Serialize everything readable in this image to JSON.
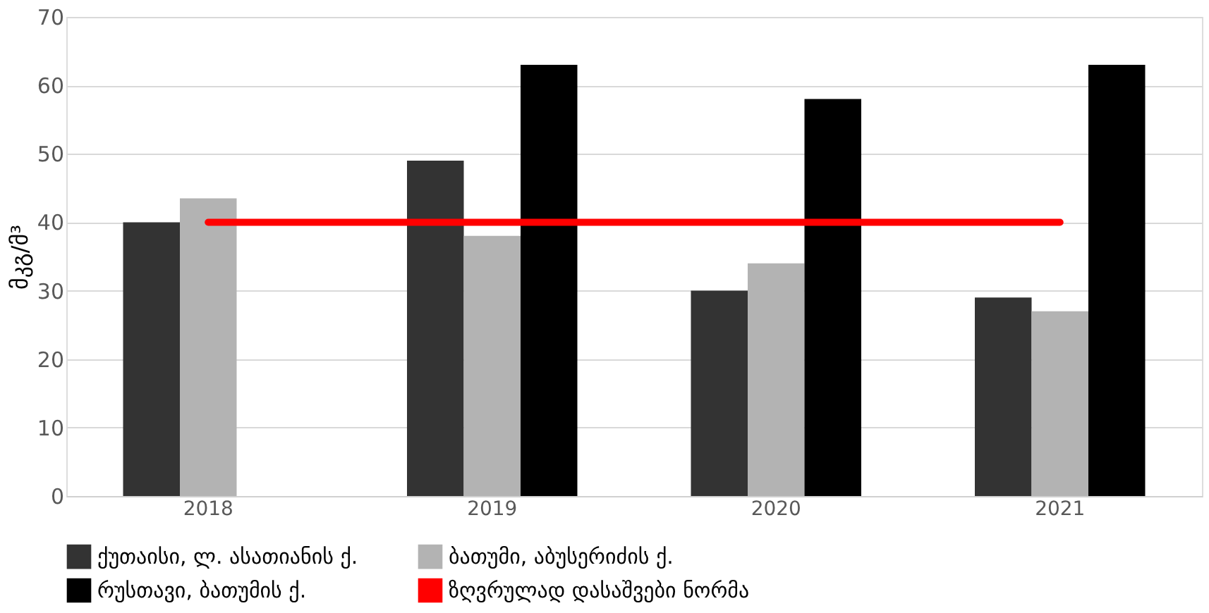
{
  "chart_data": {
    "type": "bar",
    "ylabel": "მკგ/მ³",
    "categories": [
      "2018",
      "2019",
      "2020",
      "2021"
    ],
    "series": [
      {
        "name": "ქუთაისი, ლ. ასათიანის ქ.",
        "color": "#333333",
        "values": [
          40,
          49,
          30,
          29
        ]
      },
      {
        "name": "ბათუმი, აბუსერიძის ქ.",
        "color": "#b3b3b3",
        "values": [
          43.5,
          38,
          34,
          27
        ]
      },
      {
        "name": "რუსთავი, ბათუმის ქ.",
        "color": "#000000",
        "values": [
          null,
          63,
          58,
          63
        ]
      },
      {
        "name": "ზღვრულად დასაშვები ნორმა",
        "color": "#ff0000",
        "type": "line",
        "values": [
          40,
          40,
          40,
          40
        ]
      }
    ],
    "ylim": [
      0,
      70
    ],
    "yticks": [
      0,
      10,
      20,
      30,
      40,
      50,
      60,
      70
    ],
    "grid": "y",
    "legend": "bottom",
    "marker": "none",
    "line_style": "solid"
  }
}
